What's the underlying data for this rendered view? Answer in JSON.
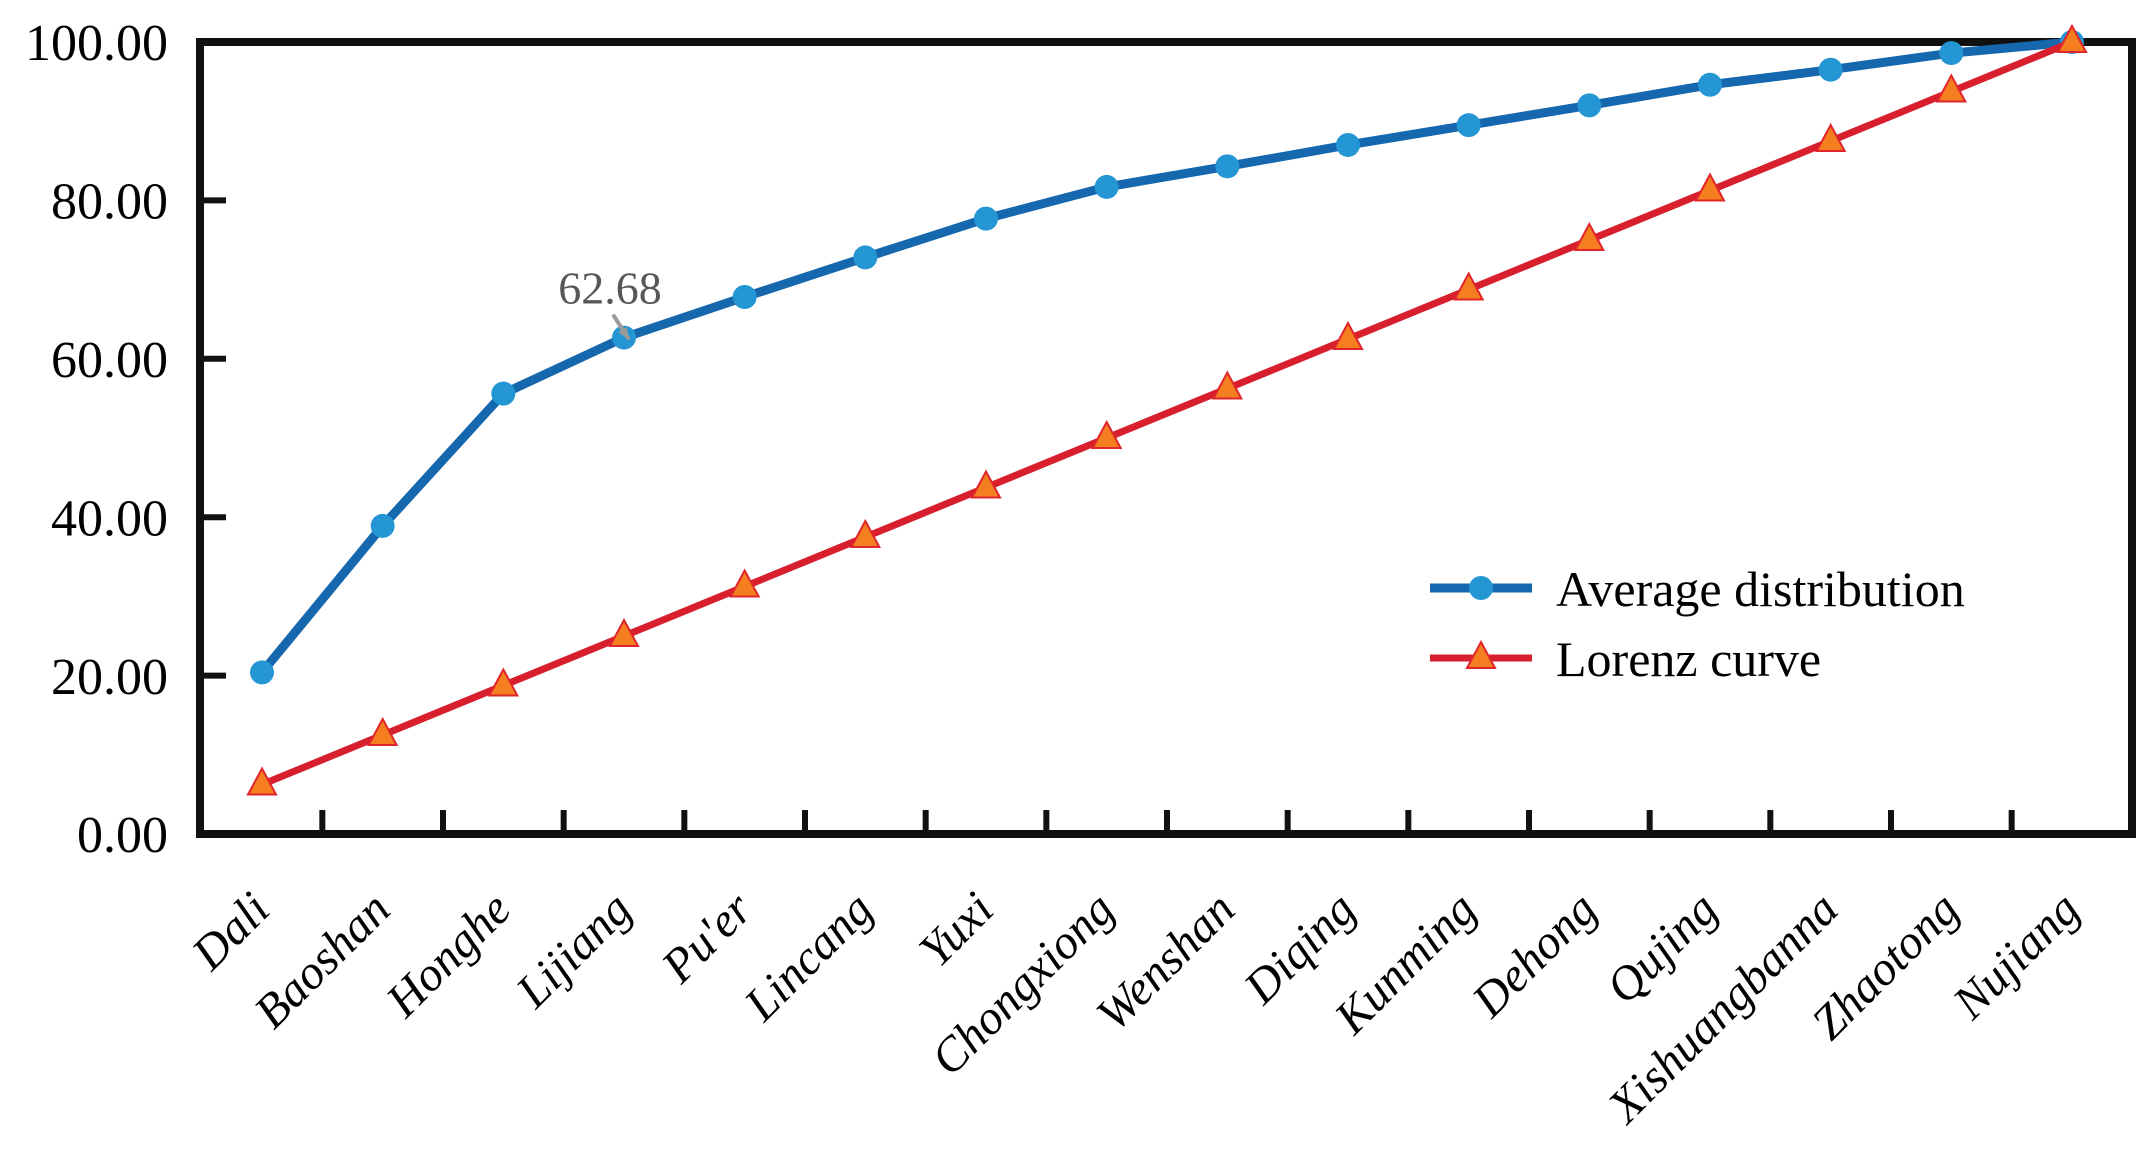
{
  "figure": {
    "background": "#ffffff",
    "axis_color": "#111111",
    "tick_label_color": "#000000"
  },
  "chart_data": {
    "type": "line",
    "title": "",
    "xlabel": "",
    "ylabel": "",
    "ylim": [
      0,
      100
    ],
    "grid": false,
    "legend_position": "center-right",
    "y_ticks": [
      {
        "label": "0.00",
        "value": 0
      },
      {
        "label": "20.00",
        "value": 20
      },
      {
        "label": "40.00",
        "value": 40
      },
      {
        "label": "60.00",
        "value": 60
      },
      {
        "label": "80.00",
        "value": 80
      },
      {
        "label": "100.00",
        "value": 100
      }
    ],
    "categories": [
      "Dali",
      "Baoshan",
      "Honghe",
      "Lijiang",
      "Pu'er",
      "Lincang",
      "Yuxi",
      "Chongxiong",
      "Wenshan",
      "Diqing",
      "Kunming",
      "Dehong",
      "Qujing",
      "Xishuangbanna",
      "Zhaotong",
      "Nujiang"
    ],
    "series": [
      {
        "name": "Average distribution",
        "marker": "circle",
        "line_color": "#1668ae",
        "marker_color": "#2496d3",
        "values": [
          20.4,
          38.9,
          55.6,
          62.68,
          67.8,
          72.8,
          77.7,
          81.7,
          84.3,
          87.0,
          89.5,
          92.0,
          94.6,
          96.5,
          98.6,
          100.0
        ]
      },
      {
        "name": "Lorenz curve",
        "marker": "triangle-up",
        "line_color": "#d71f2e",
        "marker_color": "#f57e20",
        "marker_stroke": "#e0252c",
        "values": [
          6.25,
          12.5,
          18.75,
          25.0,
          31.25,
          37.5,
          43.75,
          50.0,
          56.25,
          62.5,
          68.75,
          75.0,
          81.25,
          87.5,
          93.75,
          100.0
        ]
      }
    ],
    "annotation": {
      "text": "62.68",
      "series": "Average distribution",
      "category": "Lijiang",
      "value": 62.68,
      "text_color": "#575757",
      "arrow_color": "#9a9a9a"
    }
  }
}
